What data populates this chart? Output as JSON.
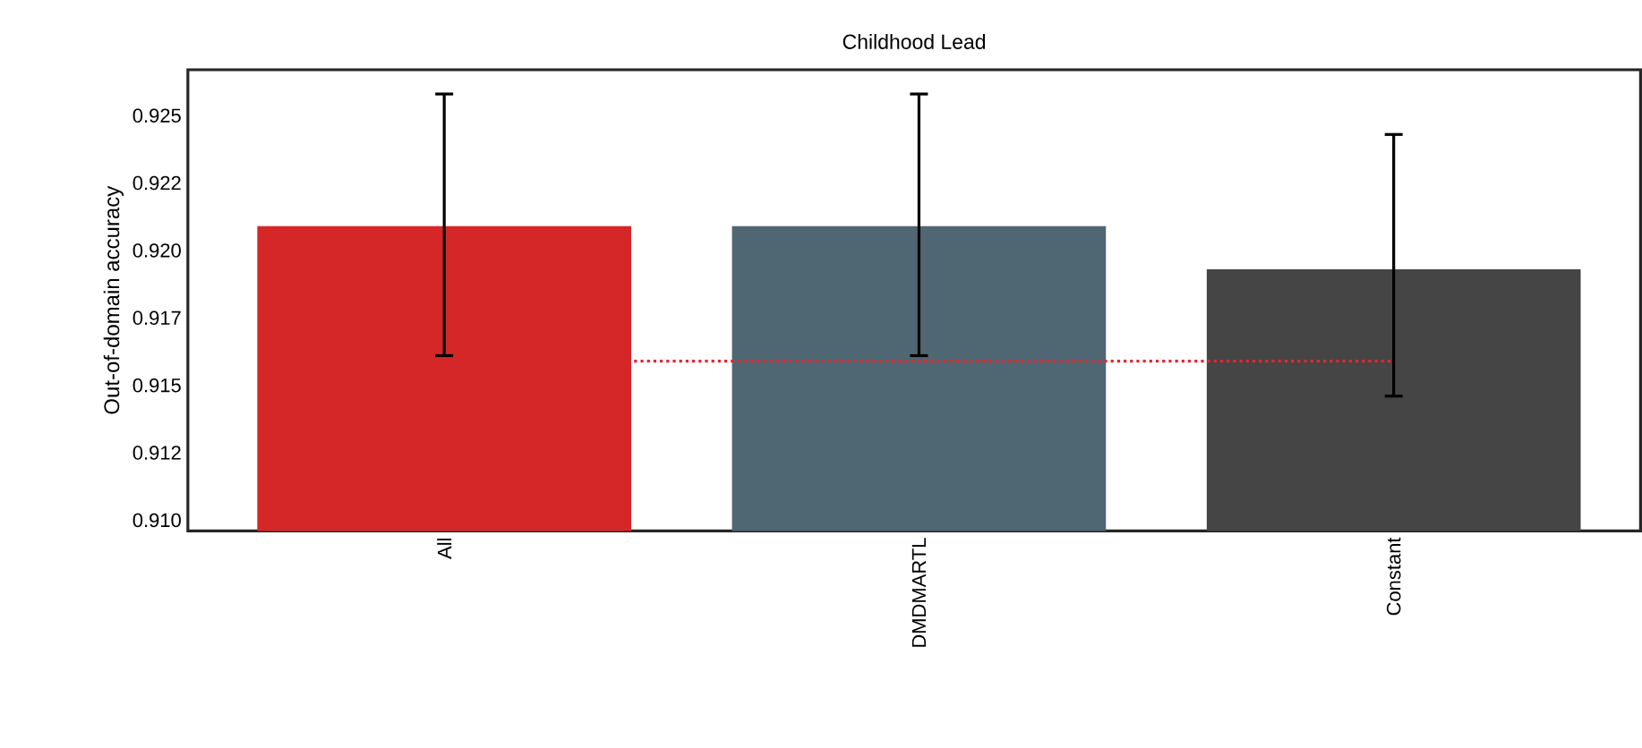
{
  "chart_data": {
    "type": "bar",
    "title": "Childhood Lead",
    "ylabel": "Out-of-domain accuracy",
    "categories": [
      "All",
      "DMDMARTL",
      "Constant"
    ],
    "values": [
      0.9209,
      0.9209,
      0.9193
    ],
    "colors": [
      "#d62728",
      "#4f6673",
      "#454545"
    ],
    "errors": [
      [
        0.9161,
        0.9258
      ],
      [
        0.9161,
        0.9258
      ],
      [
        0.9146,
        0.9243
      ]
    ],
    "ylim": [
      0.9096,
      0.9267
    ],
    "yticks": [
      {
        "value": 0.91,
        "label": "0.910"
      },
      {
        "value": 0.9125,
        "label": "0.912"
      },
      0.915,
      {
        "value": 0.9175,
        "label": "0.917"
      },
      {
        "value": 0.92,
        "label": "0.920"
      },
      {
        "value": 0.9225,
        "label": "0.922"
      },
      0.925
    ],
    "ref_lines": [
      {
        "axis": "y",
        "value": 0.9159,
        "color": "#e8262a",
        "line_style": "dotted"
      }
    ]
  }
}
